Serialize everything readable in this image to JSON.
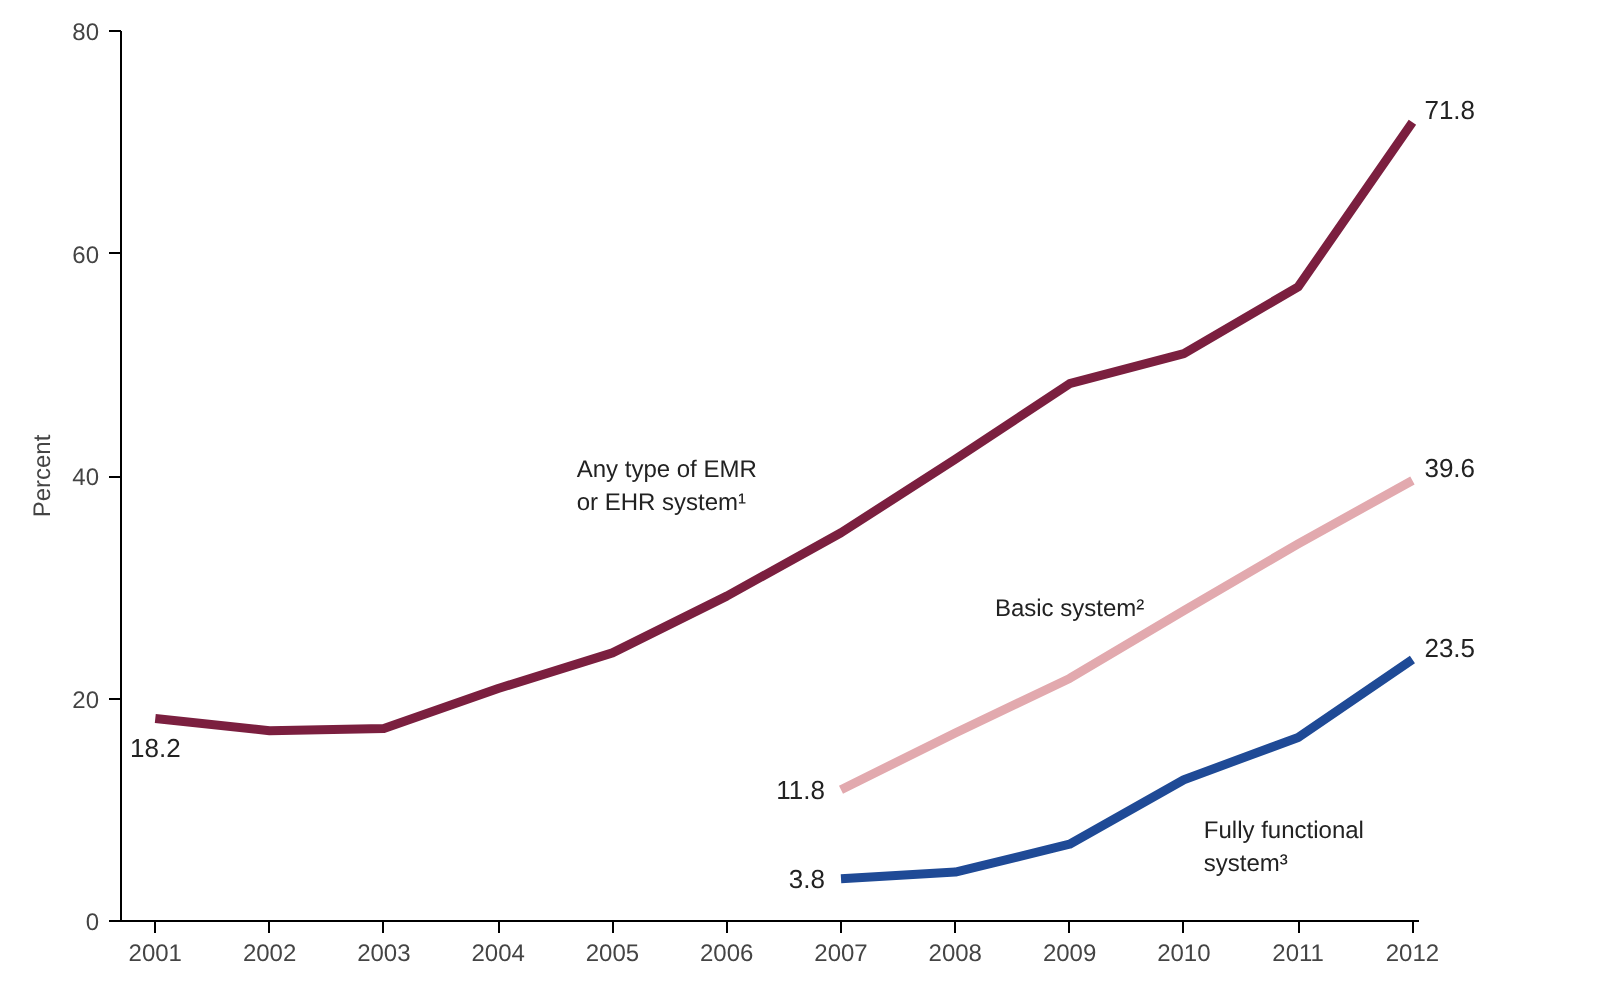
{
  "chart_data": {
    "type": "line",
    "ylabel": "Percent",
    "categories": [
      "2001",
      "2002",
      "2003",
      "2004",
      "2005",
      "2006",
      "2007",
      "2008",
      "2009",
      "2010",
      "2011",
      "2012"
    ],
    "ylim": [
      0,
      80
    ],
    "yticks": [
      0,
      20,
      40,
      60,
      80
    ],
    "grid": false,
    "marker": "none",
    "line_style": "solid",
    "series": [
      {
        "name": "Any type of EMR\nor EHR system¹",
        "color": "#7b1f3f",
        "values": [
          18.2,
          17.1,
          17.3,
          20.9,
          24.1,
          29.2,
          34.9,
          41.5,
          48.3,
          51.0,
          57.0,
          71.8
        ],
        "value_labels": [
          "18.2",
          null,
          null,
          null,
          null,
          null,
          null,
          null,
          null,
          null,
          null,
          "71.8"
        ]
      },
      {
        "name": "Basic system²",
        "color": "#e2a9ae",
        "values": [
          null,
          null,
          null,
          null,
          null,
          null,
          11.8,
          16.9,
          21.8,
          27.9,
          33.9,
          39.6
        ],
        "value_labels": [
          null,
          null,
          null,
          null,
          null,
          null,
          "11.8",
          null,
          null,
          null,
          null,
          "39.6"
        ]
      },
      {
        "name": "Fully functional\nsystem³",
        "color": "#1f4a96",
        "values": [
          null,
          null,
          null,
          null,
          null,
          null,
          3.8,
          4.4,
          6.9,
          12.7,
          16.5,
          23.5
        ],
        "value_labels": [
          null,
          null,
          null,
          null,
          null,
          null,
          "3.8",
          null,
          null,
          null,
          null,
          "23.5"
        ]
      }
    ]
  }
}
